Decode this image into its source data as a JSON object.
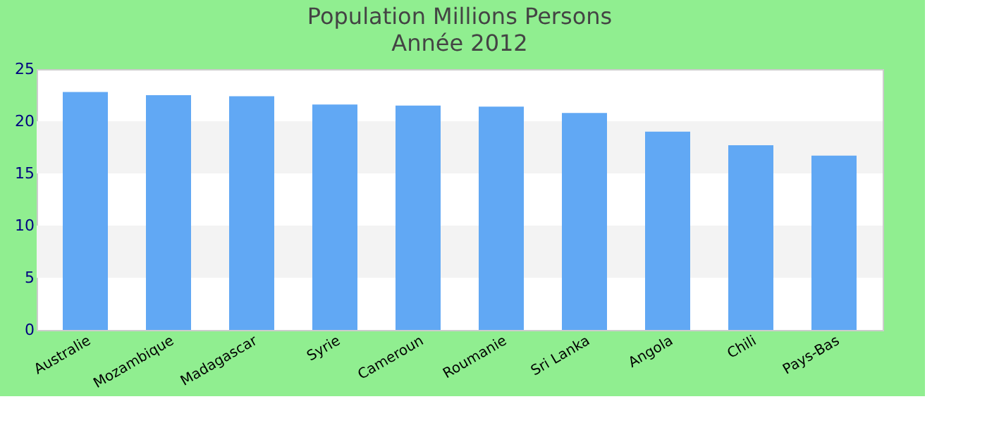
{
  "chart_data": {
    "type": "bar",
    "title": "Population Millions Persons",
    "subtitle": "Année 2012",
    "categories": [
      "Australie",
      "Mozambique",
      "Madagascar",
      "Syrie",
      "Cameroun",
      "Roumanie",
      "Sri Lanka",
      "Angola",
      "Chili",
      "Pays-Bas"
    ],
    "series": [
      {
        "color": "#61a8f4",
        "values": [
          22.8,
          22.5,
          22.4,
          21.6,
          21.5,
          21.4,
          20.8,
          19.0,
          17.7,
          16.7
        ]
      }
    ],
    "ylim": [
      0,
      25
    ],
    "yticks": [
      0,
      5,
      10,
      15,
      20,
      25
    ],
    "bands": [
      {
        "axis": "y",
        "from": 5,
        "to": 10,
        "color": "#f3f3f3"
      },
      {
        "axis": "y",
        "from": 15,
        "to": 20,
        "color": "#f3f3f3"
      }
    ]
  }
}
